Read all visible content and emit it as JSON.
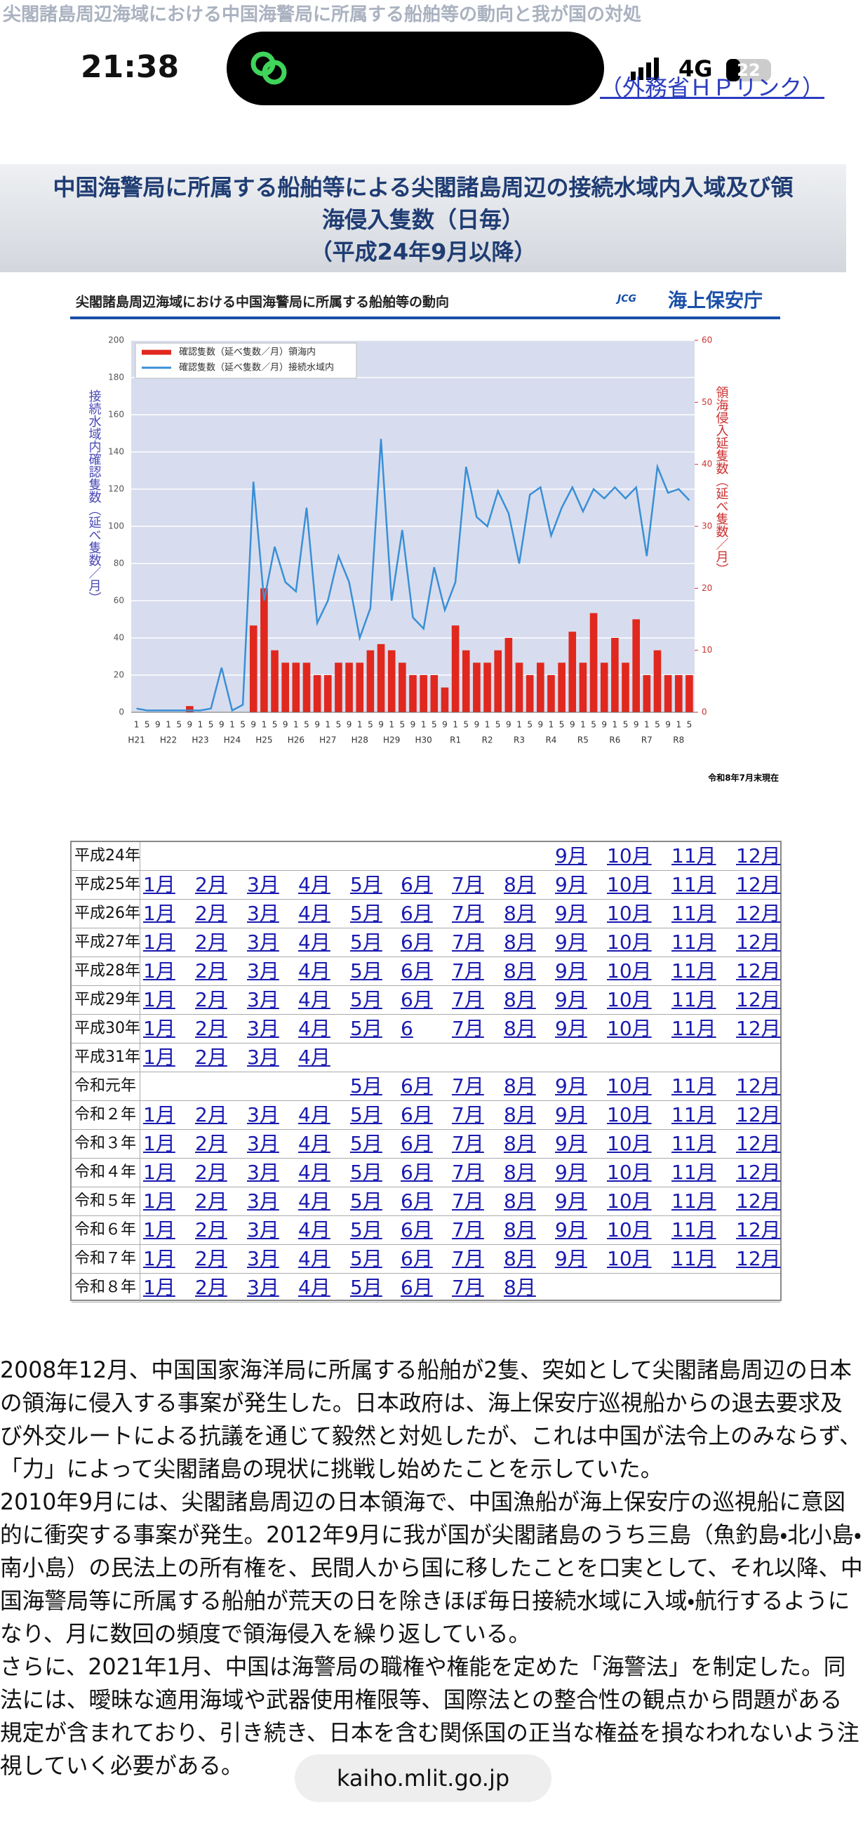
{
  "header": {
    "page_title": "尖閣諸島周辺海域における中国海警局に所属する船舶等の動向と我が国の対処",
    "time": "21:38",
    "network": "4G",
    "battery": "22",
    "link": "（外務省ＨＰリンク）"
  },
  "section_title": [
    "中国海警局に所属する船舶等による尖閣諸島周辺の接続水域内入域及び領",
    "海侵入隻数（日毎）",
    "（平成24年9月以降）"
  ],
  "chart_data": {
    "type": "combo",
    "title": "尖閣諸島周辺海域における中国海警局に所属する船舶等の動向",
    "logo_mark": "JCG",
    "logo": "海上保安庁",
    "y_label": "接続水域内確認隻数（延べ隻数／月）",
    "y2_label": "領海侵入延隻数（延べ隻数／月）",
    "note": "令和8年7月末現在",
    "categories": [
      "1",
      "5",
      "9",
      "1",
      "5",
      "9",
      "1",
      "5",
      "9",
      "1",
      "5",
      "9",
      "1",
      "5",
      "9",
      "1",
      "5",
      "9",
      "1",
      "5",
      "9",
      "1",
      "5",
      "9",
      "1",
      "5",
      "9",
      "1",
      "5",
      "9",
      "1",
      "5",
      "9",
      "1",
      "5",
      "9",
      "1",
      "5",
      "9",
      "1",
      "5",
      "9",
      "1",
      "5",
      "9",
      "1",
      "5",
      "9",
      "1",
      "5",
      "9",
      "1",
      "5"
    ],
    "year_labels": [
      "H21",
      "H22",
      "H23",
      "H24",
      "H25",
      "H26",
      "H27",
      "H28",
      "H29",
      "H30",
      "R1",
      "R2",
      "R3",
      "R4",
      "R5",
      "R6",
      "R7",
      "R8"
    ],
    "series": [
      {
        "name": "確認隻数（延べ隻数／月）領海内",
        "color": "#e0281e",
        "axis": "y2",
        "values": [
          0,
          0,
          0,
          0,
          0,
          1,
          0,
          0,
          0,
          0,
          0,
          14,
          20,
          10,
          8,
          8,
          8,
          6,
          6,
          8,
          8,
          8,
          10,
          11,
          10,
          8,
          6,
          6,
          6,
          4,
          14,
          10,
          8,
          8,
          10,
          12,
          8,
          6,
          8,
          6,
          8,
          13,
          8,
          16,
          8,
          12,
          8,
          15,
          6,
          10,
          6,
          6,
          6
        ]
      },
      {
        "name": "確認隻数（延べ隻数／月）接続水域内",
        "color": "#3a8fd6",
        "values": [
          2,
          1,
          1,
          1,
          1,
          1,
          1,
          2,
          24,
          1,
          4,
          124,
          60,
          89,
          70,
          65,
          110,
          48,
          60,
          84,
          70,
          40,
          56,
          147,
          60,
          98,
          51,
          45,
          78,
          55,
          70,
          132,
          105,
          100,
          119,
          107,
          80,
          117,
          121,
          95,
          110,
          121,
          108,
          120,
          115,
          121,
          115,
          121,
          84,
          132,
          118,
          120,
          114
        ]
      }
    ],
    "ylim": [
      0,
      200
    ],
    "yticks": [
      0,
      20,
      40,
      60,
      80,
      100,
      120,
      140,
      160,
      180,
      200
    ],
    "y2lim": [
      0,
      60
    ],
    "y2ticks": [
      0,
      10,
      20,
      30,
      40,
      50,
      60
    ],
    "grid": true
  },
  "table": {
    "rows": [
      {
        "year": "平成24年",
        "months": [
          "9月",
          "10月",
          "11月",
          "12月"
        ]
      },
      {
        "year": "平成25年",
        "months": [
          "1月",
          "2月",
          "3月",
          "4月",
          "5月",
          "6月",
          "7月",
          "8月",
          "9月",
          "10月",
          "11月",
          "12月"
        ]
      },
      {
        "year": "平成26年",
        "months": [
          "1月",
          "2月",
          "3月",
          "4月",
          "5月",
          "6月",
          "7月",
          "8月",
          "9月",
          "10月",
          "11月",
          "12月"
        ]
      },
      {
        "year": "平成27年",
        "months": [
          "1月",
          "2月",
          "3月",
          "4月",
          "5月",
          "6月",
          "7月",
          "8月",
          "9月",
          "10月",
          "11月",
          "12月"
        ]
      },
      {
        "year": "平成28年",
        "months": [
          "1月",
          "2月",
          "3月",
          "4月",
          "5月",
          "6月",
          "7月",
          "8月",
          "9月",
          "10月",
          "11月",
          "12月"
        ]
      },
      {
        "year": "平成29年",
        "months": [
          "1月",
          "2月",
          "3月",
          "4月",
          "5月",
          "6月",
          "7月",
          "8月",
          "9月",
          "10月",
          "11月",
          "12月"
        ]
      },
      {
        "year": "平成30年",
        "months": [
          "1月",
          "2月",
          "3月",
          "4月",
          "5月",
          "6",
          "7月",
          "8月",
          "9月",
          "10月",
          "11月",
          "12月"
        ]
      },
      {
        "year": "平成31年",
        "months": [
          "1月",
          "2月",
          "3月",
          "4月"
        ]
      },
      {
        "year": "令和元年",
        "months": [
          "5月",
          "6月",
          "7月",
          "8月",
          "9月",
          "10月",
          "11月",
          "12月"
        ]
      },
      {
        "year": "令和２年",
        "months": [
          "1月",
          "2月",
          "3月",
          "4月",
          "5月",
          "6月",
          "7月",
          "8月",
          "9月",
          "10月",
          "11月",
          "12月"
        ]
      },
      {
        "year": "令和３年",
        "months": [
          "1月",
          "2月",
          "3月",
          "4月",
          "5月",
          "6月",
          "7月",
          "8月",
          "9月",
          "10月",
          "11月",
          "12月"
        ]
      },
      {
        "year": "令和４年",
        "months": [
          "1月",
          "2月",
          "3月",
          "4月",
          "5月",
          "6月",
          "7月",
          "8月",
          "9月",
          "10月",
          "11月",
          "12月"
        ]
      },
      {
        "year": "令和５年",
        "months": [
          "1月",
          "2月",
          "3月",
          "4月",
          "5月",
          "6月",
          "7月",
          "8月",
          "9月",
          "10月",
          "11月",
          "12月"
        ]
      },
      {
        "year": "令和６年",
        "months": [
          "1月",
          "2月",
          "3月",
          "4月",
          "5月",
          "6月",
          "7月",
          "8月",
          "9月",
          "10月",
          "11月",
          "12月"
        ]
      },
      {
        "year": "令和７年",
        "months": [
          "1月",
          "2月",
          "3月",
          "4月",
          "5月",
          "6月",
          "7月",
          "8月",
          "9月",
          "10月",
          "11月",
          "12月"
        ]
      },
      {
        "year": "令和８年",
        "months": [
          "1月",
          "2月",
          "3月",
          "4月",
          "5月",
          "6月",
          "7月",
          "8月"
        ]
      }
    ]
  },
  "body": [
    "2008年12月、中国国家海洋局に所属する船舶が2隻、突如として尖閣諸島周辺の日本の領海に侵入する事案が発生した。日本政府は、海上保安庁巡視船からの退去要求及び外交ルートによる抗議を通じて毅然と対処したが、これは中国が法令上のみならず、「力」によって尖閣諸島の現状に挑戦し始めたことを示していた。",
    "2010年9月には、尖閣諸島周辺の日本領海で、中国漁船が海上保安庁の巡視船に意図的に衝突する事案が発生。2012年9月に我が国が尖閣諸島のうち三島（魚釣島・北小島・南小島）の民法上の所有権を、民間人から国に移したことを口実として、それ以降、中国海警局等に所属する船舶が荒天の日を除きほぼ毎日接続水域に入域・航行するようになり、月に数回の頻度で領海侵入を繰り返している。",
    "さらに、2021年1月、中国は海警局の職権や権能を定めた「海警法」を制定した。同法には、曖昧な適用海域や武器使用権限等、国際法との整合性の観点から問題がある規定が含まれており、引き続き、日本を含む関係国の正当な権益を損なわれないよう注視していく必要がある。"
  ],
  "url": "kaiho.mlit.go.jp"
}
